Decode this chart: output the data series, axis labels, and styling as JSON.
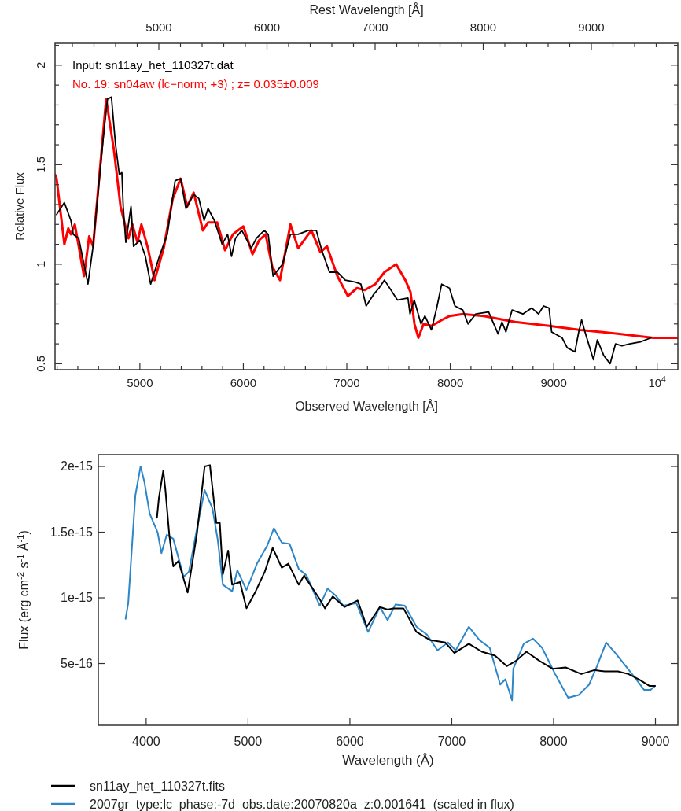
{
  "chart_data": [
    {
      "type": "line",
      "xlabel": "Observed Wavelength [Å]",
      "ylabel": "Relative Flux",
      "x2label": "Rest Wavelength [Å]",
      "legend": "top left",
      "xlim": [
        4180,
        10200
      ],
      "ylim": [
        0.47,
        2.11
      ],
      "x2lim": [
        4040,
        9800
      ],
      "xticks": [
        {
          "value": 4200,
          "label": null
        },
        {
          "value": 4400,
          "label": null
        },
        {
          "value": 4600,
          "label": null
        },
        {
          "value": 4800,
          "label": null
        },
        5000,
        {
          "value": 5200,
          "label": null
        },
        {
          "value": 5400,
          "label": null
        },
        {
          "value": 5600,
          "label": null
        },
        {
          "value": 5800,
          "label": null
        },
        6000,
        {
          "value": 6200,
          "label": null
        },
        {
          "value": 6400,
          "label": null
        },
        {
          "value": 6600,
          "label": null
        },
        {
          "value": 6800,
          "label": null
        },
        7000,
        {
          "value": 7200,
          "label": null
        },
        {
          "value": 7400,
          "label": null
        },
        {
          "value": 7600,
          "label": null
        },
        {
          "value": 7800,
          "label": null
        },
        8000,
        {
          "value": 8200,
          "label": null
        },
        {
          "value": 8400,
          "label": null
        },
        {
          "value": 8600,
          "label": null
        },
        {
          "value": 8800,
          "label": null
        },
        9000,
        {
          "value": 9200,
          "label": null
        },
        {
          "value": 9400,
          "label": null
        },
        {
          "value": 9600,
          "label": null
        },
        {
          "value": 9800,
          "label": null
        },
        {
          "value": 10000,
          "label": "10$^{4}$"
        }
      ],
      "x2ticks": [
        {
          "value": 4200,
          "label": null
        },
        {
          "value": 4400,
          "label": null
        },
        {
          "value": 4600,
          "label": null
        },
        {
          "value": 4800,
          "label": null
        },
        5000,
        {
          "value": 5200,
          "label": null
        },
        {
          "value": 5400,
          "label": null
        },
        {
          "value": 5600,
          "label": null
        },
        {
          "value": 5800,
          "label": null
        },
        6000,
        {
          "value": 6200,
          "label": null
        },
        {
          "value": 6400,
          "label": null
        },
        {
          "value": 6600,
          "label": null
        },
        {
          "value": 6800,
          "label": null
        },
        7000,
        {
          "value": 7200,
          "label": null
        },
        {
          "value": 7400,
          "label": null
        },
        {
          "value": 7600,
          "label": null
        },
        {
          "value": 7800,
          "label": null
        },
        8000,
        {
          "value": 8200,
          "label": null
        },
        {
          "value": 8400,
          "label": null
        },
        {
          "value": 8600,
          "label": null
        },
        {
          "value": 8800,
          "label": null
        },
        9000,
        {
          "value": 9200,
          "label": null
        },
        {
          "value": 9400,
          "label": null
        },
        {
          "value": 9600,
          "label": null
        }
      ],
      "yticks": [
        0.5,
        {
          "value": 0.6,
          "label": null
        },
        {
          "value": 0.7,
          "label": null
        },
        {
          "value": 0.8,
          "label": null
        },
        {
          "value": 0.9,
          "label": null
        },
        1,
        {
          "value": 1.1,
          "label": null
        },
        {
          "value": 1.2,
          "label": null
        },
        {
          "value": 1.3,
          "label": null
        },
        {
          "value": 1.4,
          "label": null
        },
        1.5,
        {
          "value": 1.6,
          "label": null
        },
        {
          "value": 1.7,
          "label": null
        },
        {
          "value": 1.8,
          "label": null
        },
        {
          "value": 1.9,
          "label": null
        },
        2,
        {
          "value": 2.1,
          "label": null
        }
      ],
      "series": [
        {
          "name": "Input: sn11ay_het_110327t.dat",
          "color": "#000000",
          "x": [
            4195,
            4270,
            4333,
            4356,
            4409,
            4498,
            4545,
            4649,
            4687,
            4725,
            4763,
            4801,
            4826,
            4839,
            4864,
            4914,
            4939,
            5000,
            5053,
            5104,
            5189,
            5265,
            5341,
            5394,
            5445,
            5520,
            5570,
            5621,
            5659,
            5720,
            5795,
            5848,
            5886,
            5924,
            5985,
            6076,
            6126,
            6202,
            6240,
            6288,
            6379,
            6455,
            6530,
            6629,
            6705,
            6758,
            6833,
            6909,
            6985,
            7083,
            7136,
            7187,
            7262,
            7311,
            7364,
            7490,
            7591,
            7611,
            7652,
            7717,
            7755,
            7818,
            7869,
            7917,
            7992,
            8045,
            8121,
            8172,
            8247,
            8371,
            8462,
            8500,
            8538,
            8598,
            8702,
            8788,
            8853,
            8902,
            8955,
            8980,
            9081,
            9131,
            9205,
            9242,
            9270,
            9308,
            9384,
            9422,
            9485,
            9545,
            9598,
            9659,
            9735,
            9838,
            9939
          ],
          "values": [
            1.25,
            1.31,
            1.22,
            1.15,
            1.13,
            0.9,
            1.08,
            1.65,
            1.83,
            1.84,
            1.61,
            1.45,
            1.46,
            1.29,
            1.11,
            1.29,
            1.09,
            1.12,
            1.04,
            0.9,
            1.04,
            1.15,
            1.42,
            1.43,
            1.28,
            1.35,
            1.33,
            1.22,
            1.28,
            1.22,
            1.1,
            1.15,
            1.04,
            1.13,
            1.17,
            1.08,
            1.13,
            1.17,
            1.15,
            0.94,
            1.0,
            1.15,
            1.15,
            1.17,
            1.17,
            1.07,
            0.96,
            0.96,
            0.92,
            0.91,
            0.9,
            0.79,
            0.85,
            0.88,
            0.92,
            0.82,
            0.83,
            0.75,
            0.82,
            0.7,
            0.74,
            0.67,
            0.78,
            0.9,
            0.88,
            0.79,
            0.77,
            0.7,
            0.75,
            0.76,
            0.65,
            0.71,
            0.66,
            0.77,
            0.75,
            0.78,
            0.75,
            0.79,
            0.78,
            0.66,
            0.63,
            0.58,
            0.56,
            0.66,
            0.72,
            0.65,
            0.52,
            0.62,
            0.54,
            0.5,
            0.6,
            0.59,
            0.6,
            0.61,
            0.63
          ]
        },
        {
          "name": "No. 19: sn04aw (lc−norm; +3) ; z= 0.035±0.009",
          "color": "#ff0000",
          "x": [
            4180,
            4195,
            4270,
            4308,
            4333,
            4371,
            4460,
            4510,
            4548,
            4674,
            4750,
            4813,
            4889,
            4927,
            4977,
            5015,
            5078,
            5142,
            5230,
            5318,
            5394,
            5457,
            5520,
            5609,
            5659,
            5747,
            5823,
            5899,
            6000,
            6089,
            6152,
            6215,
            6278,
            6354,
            6455,
            6530,
            6657,
            6745,
            6808,
            6909,
            7010,
            7098,
            7174,
            7275,
            7364,
            7477,
            7566,
            7616,
            7654,
            7692,
            7742,
            7818,
            7919,
            7995,
            8121,
            8323,
            8626,
            8955,
            9258,
            9636,
            9962,
            10200
          ],
          "values": [
            1.45,
            1.43,
            1.1,
            1.18,
            1.15,
            1.2,
            0.94,
            1.14,
            1.09,
            1.83,
            1.57,
            1.29,
            1.13,
            1.2,
            1.11,
            1.2,
            1.08,
            0.92,
            1.08,
            1.33,
            1.43,
            1.29,
            1.36,
            1.17,
            1.21,
            1.21,
            1.07,
            1.15,
            1.19,
            1.05,
            1.12,
            1.15,
            0.99,
            0.92,
            1.2,
            1.08,
            1.17,
            1.06,
            1.09,
            0.94,
            0.84,
            0.88,
            0.87,
            0.9,
            0.96,
            1.0,
            0.92,
            0.86,
            0.7,
            0.63,
            0.7,
            0.69,
            0.72,
            0.74,
            0.75,
            0.74,
            0.71,
            0.69,
            0.67,
            0.65,
            0.63,
            0.63
          ]
        }
      ]
    },
    {
      "type": "line",
      "xlabel": "Wavelength (Å)",
      "ylabel": "Flux (erg cm$^{-2}$ s$^{-1}$ Å$^{-1}$)",
      "legend": "bottom",
      "xlim": [
        3530,
        9220
      ],
      "ylim": [
        3e-17,
        2.09e-15
      ],
      "xticks": [
        4000,
        5000,
        6000,
        7000,
        8000,
        9000
      ],
      "yticks": [
        {
          "value": 5e-16,
          "label": "5e-16"
        },
        {
          "value": 1e-15,
          "label": "1e-15"
        },
        {
          "value": 1.5e-15,
          "label": "1.5e-15"
        },
        {
          "value": 2e-15,
          "label": "2e-15"
        }
      ],
      "series": [
        {
          "name": "sn11ay_het_110327t.fits",
          "color": "#000000",
          "x": [
            4106,
            4125,
            4168,
            4189,
            4227,
            4266,
            4317,
            4407,
            4497,
            4574,
            4626,
            4689,
            4723,
            4753,
            4805,
            4844,
            4921,
            4985,
            5075,
            5165,
            5242,
            5331,
            5396,
            5498,
            5550,
            5704,
            5755,
            5832,
            5948,
            6076,
            6166,
            6294,
            6371,
            6423,
            6526,
            6654,
            6783,
            6937,
            7026,
            7168,
            7296,
            7425,
            7540,
            7630,
            7733,
            7861,
            7990,
            8118,
            8272,
            8400,
            8503,
            8632,
            8734,
            8837,
            8940,
            8996
          ],
          "values": [
            1.61e-15,
            1.76e-15,
            1.97e-15,
            1.82e-15,
            1.48e-15,
            1.24e-15,
            1.28e-15,
            1.04e-15,
            1.48e-15,
            2e-15,
            2.01e-15,
            1.57e-15,
            1.57e-15,
            1.18e-15,
            1.36e-15,
            1.1e-15,
            1.12e-15,
            9.2e-16,
            1.05e-15,
            1.2e-15,
            1.38e-15,
            1.23e-15,
            1.26e-15,
            1.1e-15,
            1.17e-15,
            9.9e-16,
            9.2e-16,
            1.01e-15,
            9.3e-16,
            9.8e-16,
            7.8e-16,
            9.3e-16,
            9.1e-16,
            9.2e-16,
            9.2e-16,
            7.4e-16,
            6.8e-16,
            6.6e-16,
            5.8e-16,
            6.5e-16,
            5.9e-16,
            5.6e-16,
            4.8e-16,
            5.2e-16,
            5.9e-16,
            5.2e-16,
            4.6e-16,
            4.7e-16,
            4.2e-16,
            4.5e-16,
            4.4e-16,
            4.4e-16,
            4.2e-16,
            3.8e-16,
            3.3e-16,
            3.3e-16
          ]
        },
        {
          "name": "2007gr  type:lc  phase:-7d  obs.date:20070820a  z:0.001641  (scaled in flux)",
          "color": "#2c86c8",
          "x": [
            3798,
            3824,
            3894,
            3945,
            3983,
            4035,
            4112,
            4150,
            4202,
            4266,
            4368,
            4420,
            4497,
            4574,
            4651,
            4703,
            4753,
            4844,
            4895,
            4985,
            5088,
            5190,
            5254,
            5331,
            5408,
            5498,
            5575,
            5704,
            5781,
            5858,
            5935,
            6063,
            6179,
            6294,
            6371,
            6448,
            6539,
            6654,
            6757,
            6860,
            6962,
            7039,
            7168,
            7270,
            7373,
            7476,
            7527,
            7592,
            7604,
            7707,
            7797,
            7887,
            8015,
            8143,
            8246,
            8349,
            8426,
            8516,
            8606,
            8709,
            8811,
            8888,
            8952,
            8996
          ],
          "values": [
            8.4e-16,
            9.6e-16,
            1.78e-15,
            2e-15,
            1.88e-15,
            1.64e-15,
            1.5e-15,
            1.34e-15,
            1.48e-15,
            1.45e-15,
            1.16e-15,
            1.2e-15,
            1.52e-15,
            1.82e-15,
            1.68e-15,
            1.44e-15,
            1.1e-15,
            1.05e-15,
            1.21e-15,
            1.06e-15,
            1.26e-15,
            1.4e-15,
            1.53e-15,
            1.42e-15,
            1.41e-15,
            1.22e-15,
            1.17e-15,
            9.4e-16,
            1.07e-15,
            1.02e-15,
            9.4e-16,
            9.6e-16,
            7.4e-16,
            9.3e-16,
            8.3e-16,
            9.5e-16,
            9.4e-16,
            7.8e-16,
            7.2e-16,
            6e-16,
            6.6e-16,
            6e-16,
            7.8e-16,
            6.8e-16,
            6.2e-16,
            3.4e-16,
            3.8e-16,
            2.2e-16,
            4.6e-16,
            6.5e-16,
            6.9e-16,
            6.2e-16,
            4.2e-16,
            2.4e-16,
            2.6e-16,
            3.4e-16,
            4.8e-16,
            6.6e-16,
            5.8e-16,
            4.8e-16,
            3.8e-16,
            3e-16,
            3e-16,
            3.3e-16
          ]
        }
      ]
    }
  ]
}
